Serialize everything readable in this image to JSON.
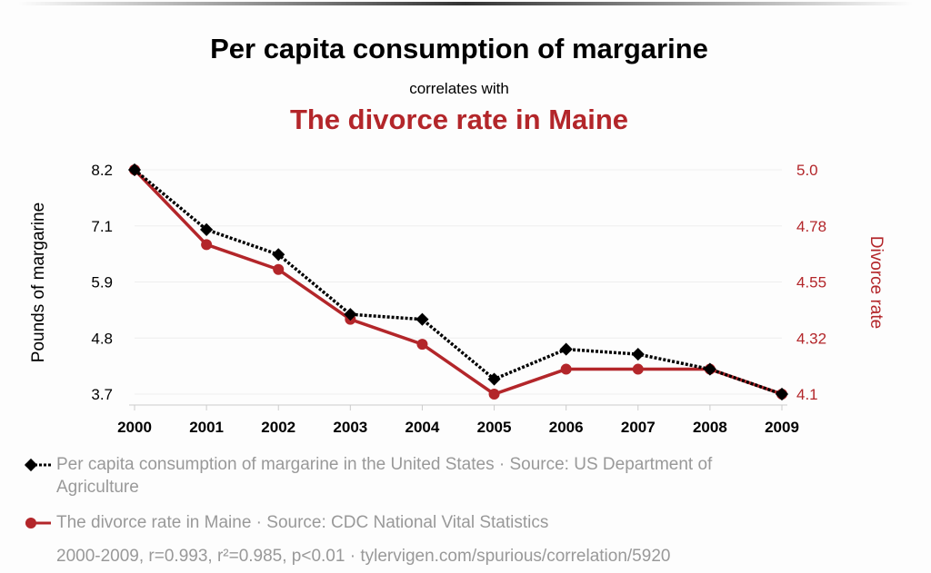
{
  "chart_data": {
    "type": "line",
    "title": "Per capita consumption of margarine",
    "subtitle": "correlates with",
    "title2": "The divorce rate in Maine",
    "x": [
      2000,
      2001,
      2002,
      2003,
      2004,
      2005,
      2006,
      2007,
      2008,
      2009
    ],
    "xticks": [
      "2000",
      "2001",
      "2002",
      "2003",
      "2004",
      "2005",
      "2006",
      "2007",
      "2008",
      "2009"
    ],
    "ylabel_left": "Pounds of margarine",
    "ylabel_right": "Divorce rate",
    "ylim_left": [
      3.7,
      8.2
    ],
    "ylim_right": [
      4.1,
      5.0
    ],
    "yticks_left": [
      "8.2",
      "7.1",
      "5.9",
      "4.8",
      "3.7"
    ],
    "yticks_right": [
      "5.0",
      "4.78",
      "4.55",
      "4.32",
      "4.1"
    ],
    "grid": true,
    "series": [
      {
        "name": "Per capita consumption of margarine in the United States · Source: US Department of Agriculture",
        "axis": "left",
        "color": "#000000",
        "style": "dotted",
        "marker": "diamond",
        "values": [
          8.2,
          7.0,
          6.5,
          5.3,
          5.2,
          4.0,
          4.6,
          4.5,
          4.2,
          3.7
        ]
      },
      {
        "name": "The divorce rate in Maine · Source: CDC National Vital Statistics",
        "axis": "right",
        "color": "#b3262a",
        "style": "solid",
        "marker": "circle",
        "values": [
          5.0,
          4.7,
          4.6,
          4.4,
          4.3,
          4.1,
          4.2,
          4.2,
          4.2,
          4.1
        ]
      }
    ],
    "footer": "2000-2009, r=0.993, r²=0.985, p<0.01 · tylervigen.com/spurious/correlation/5920"
  }
}
